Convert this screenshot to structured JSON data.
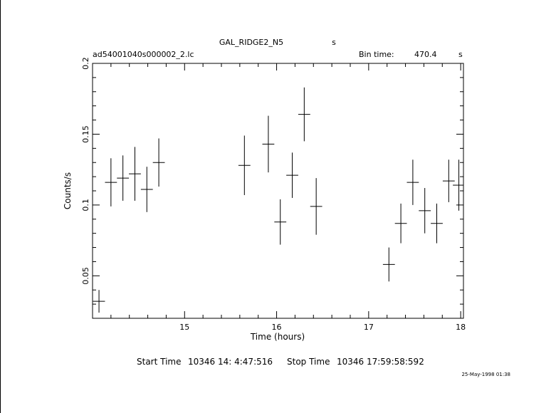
{
  "chart_data": {
    "type": "scatter",
    "title": "GAL_RIDGE2_N5",
    "title_suffix": "s",
    "file_label": "ad54001040s000002_2.lc",
    "bin_time_label": "Bin time:",
    "bin_time_value": "470.4",
    "bin_time_unit": "s",
    "xlabel": "Time (hours)",
    "ylabel": "Counts/s",
    "xlim": [
      14.0,
      18.03
    ],
    "ylim": [
      0.02,
      0.2
    ],
    "x_ticks": [
      15,
      16,
      17,
      18
    ],
    "x_tick_labels": [
      "15",
      "16",
      "17",
      "18"
    ],
    "y_ticks": [
      0.05,
      0.1,
      0.15,
      0.2
    ],
    "y_tick_labels": [
      "0.05",
      "0.1",
      "0.15",
      "0.2"
    ],
    "grid": false,
    "series": [
      {
        "x_halfwidth": 0.065,
        "points": [
          {
            "x": 14.07,
            "y": 0.032,
            "err": 0.008
          },
          {
            "x": 14.2,
            "y": 0.116,
            "err": 0.017
          },
          {
            "x": 14.33,
            "y": 0.119,
            "err": 0.016
          },
          {
            "x": 14.46,
            "y": 0.122,
            "err": 0.019
          },
          {
            "x": 14.59,
            "y": 0.111,
            "err": 0.016
          },
          {
            "x": 14.72,
            "y": 0.13,
            "err": 0.017
          },
          {
            "x": 15.65,
            "y": 0.128,
            "err": 0.021
          },
          {
            "x": 15.91,
            "y": 0.143,
            "err": 0.02
          },
          {
            "x": 16.04,
            "y": 0.088,
            "err": 0.016
          },
          {
            "x": 16.17,
            "y": 0.121,
            "err": 0.016
          },
          {
            "x": 16.3,
            "y": 0.164,
            "err": 0.019
          },
          {
            "x": 16.43,
            "y": 0.099,
            "err": 0.02
          },
          {
            "x": 17.22,
            "y": 0.058,
            "err": 0.012
          },
          {
            "x": 17.35,
            "y": 0.087,
            "err": 0.014
          },
          {
            "x": 17.48,
            "y": 0.116,
            "err": 0.016
          },
          {
            "x": 17.61,
            "y": 0.096,
            "err": 0.016
          },
          {
            "x": 17.74,
            "y": 0.087,
            "err": 0.014
          },
          {
            "x": 17.87,
            "y": 0.117,
            "err": 0.015
          },
          {
            "x": 17.98,
            "y": 0.114,
            "err": 0.018
          }
        ]
      }
    ],
    "footer": {
      "start_label": "Start Time",
      "start_value": "10346 14: 4:47:516",
      "stop_label": "Stop Time",
      "stop_value": "10346 17:59:58:592",
      "timestamp": "25-May-1998 01:38"
    }
  }
}
